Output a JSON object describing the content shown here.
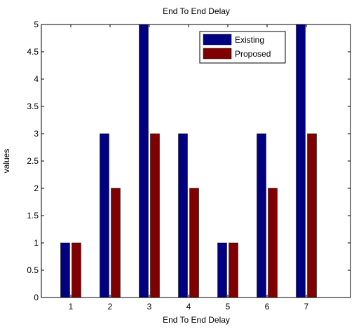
{
  "chart_data": {
    "type": "bar",
    "title": "End To End Delay",
    "xlabel": "End To End Delay",
    "ylabel": "values",
    "categories": [
      "1",
      "2",
      "3",
      "4",
      "5",
      "6",
      "7"
    ],
    "ylim": [
      0,
      5
    ],
    "yticks": [
      "0",
      "0.5",
      "1",
      "1.5",
      "2",
      "2.5",
      "3",
      "3.5",
      "4",
      "4.5",
      "5"
    ],
    "grid": false,
    "legend_position": "top-right",
    "series": [
      {
        "name": "Existing",
        "color": "#000080",
        "values": [
          1,
          3,
          5,
          3,
          1,
          3,
          5
        ]
      },
      {
        "name": "Proposed",
        "color": "#800000",
        "values": [
          1,
          2,
          3,
          2,
          1,
          2,
          3
        ]
      }
    ]
  }
}
